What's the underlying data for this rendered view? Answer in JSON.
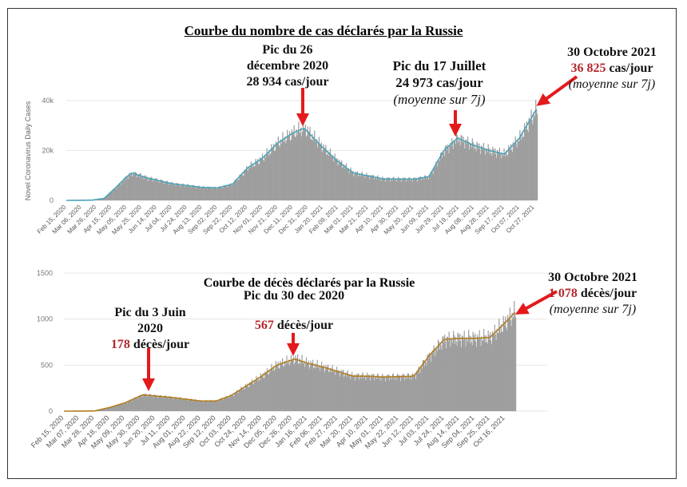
{
  "colors": {
    "bars": "#9e9e9e",
    "cases_line": "#4aa3b8",
    "deaths_line": "#b07d1f",
    "arrow": "#e31a1c",
    "highlight": "#b3282d",
    "grid": "#e6e6e6"
  },
  "chart_data": [
    {
      "type": "bar",
      "title": "Courbe du nombre de cas déclarés par la Russie",
      "ylabel": "Novel Coronavirus Daily Cases",
      "ylim": [
        0,
        40000
      ],
      "yticks": [
        {
          "v": 0,
          "label": "0"
        },
        {
          "v": 20000,
          "label": "20k"
        },
        {
          "v": 40000,
          "label": "40k"
        }
      ],
      "xrange": [
        "2020-02-15",
        "2021-10-30"
      ],
      "xticks": [
        "Feb 15, 2020",
        "Mar 06, 2020",
        "Mar 26, 2020",
        "Apr 15, 2020",
        "May 05, 2020",
        "May 25, 2020",
        "Jun 14, 2020",
        "Jul 04, 2020",
        "Jul 24, 2020",
        "Aug 13, 2020",
        "Sep 02, 2020",
        "Sep 22, 2020",
        "Oct 12, 2020",
        "Nov 01, 2020",
        "Nov 21, 2020",
        "Dec 11, 2020",
        "Dec 31, 2020",
        "Jan 20, 2021",
        "Feb 09, 2021",
        "Mar 01, 2021",
        "Mar 21, 2021",
        "Apr 10, 2021",
        "Apr 30, 2021",
        "May 20, 2021",
        "Jun 09, 2021",
        "Jun 29, 2021",
        "Jul 19, 2021",
        "Aug 08, 2021",
        "Aug 28, 2021",
        "Sep 17, 2021",
        "Oct 07, 2021",
        "Oct 27, 2021"
      ],
      "tick_step_days": 20,
      "series": [
        {
          "name": "7-day average",
          "points": [
            [
              "2020-02-15",
              0
            ],
            [
              "2020-03-20",
              100
            ],
            [
              "2020-04-05",
              800
            ],
            [
              "2020-04-20",
              5000
            ],
            [
              "2020-05-05",
              9500
            ],
            [
              "2020-05-12",
              11000
            ],
            [
              "2020-06-01",
              9000
            ],
            [
              "2020-07-04",
              6700
            ],
            [
              "2020-08-13",
              5200
            ],
            [
              "2020-09-02",
              5000
            ],
            [
              "2020-09-22",
              6500
            ],
            [
              "2020-10-12",
              13000
            ],
            [
              "2020-11-01",
              17000
            ],
            [
              "2020-11-21",
              23000
            ],
            [
              "2020-12-11",
              27000
            ],
            [
              "2020-12-26",
              28934
            ],
            [
              "2021-01-20",
              21000
            ],
            [
              "2021-02-09",
              15500
            ],
            [
              "2021-03-01",
              11000
            ],
            [
              "2021-04-10",
              8600
            ],
            [
              "2021-05-20",
              8500
            ],
            [
              "2021-06-09",
              9500
            ],
            [
              "2021-06-29",
              20000
            ],
            [
              "2021-07-17",
              24973
            ],
            [
              "2021-08-08",
              22000
            ],
            [
              "2021-08-28",
              20000
            ],
            [
              "2021-09-17",
              18500
            ],
            [
              "2021-10-07",
              25000
            ],
            [
              "2021-10-30",
              36825
            ]
          ]
        }
      ],
      "annotations": {
        "peak1": {
          "l1": "Pic du 26",
          "l2": "décembre 2020",
          "value": "28 934",
          "unit": "cas/jour"
        },
        "peak2": {
          "l1": "Pic du 17 Juillet",
          "value": "24 973",
          "unit": "cas/jour",
          "note": "(moyenne sur 7j)"
        },
        "last": {
          "l1": "30 Octobre 2021",
          "value": "36 825",
          "unit": "cas/jour",
          "note": "(moyenne sur 7j)"
        }
      }
    },
    {
      "type": "bar",
      "title": "Courbe de décès déclarés par la Russie",
      "ylim": [
        0,
        1500
      ],
      "yticks": [
        {
          "v": 0,
          "label": "0"
        },
        {
          "v": 500,
          "label": "500"
        },
        {
          "v": 1000,
          "label": "1000"
        },
        {
          "v": 1500,
          "label": "1500"
        }
      ],
      "xrange": [
        "2020-02-15",
        "2021-10-30"
      ],
      "xticks": [
        "Feb 15, 2020",
        "Mar 07, 2020",
        "Mar 28, 2020",
        "Apr 18, 2020",
        "May 09, 2020",
        "May 30, 2020",
        "Jun 20, 2020",
        "Jul 11, 2020",
        "Aug 01, 2020",
        "Aug 22, 2020",
        "Sep 12, 2020",
        "Oct 03, 2020",
        "Oct 24, 2020",
        "Nov 14, 2020",
        "Dec 05, 2020",
        "Dec 26, 2020",
        "Jan 16, 2021",
        "Feb 06, 2021",
        "Feb 27, 2021",
        "Mar 20, 2021",
        "Apr 10, 2021",
        "May 01, 2021",
        "May 22, 2021",
        "Jun 12, 2021",
        "Jul 03, 2021",
        "Jul 24, 2021",
        "Aug 14, 2021",
        "Sep 04, 2021",
        "Sep 25, 2021",
        "Oct 16, 2021"
      ],
      "tick_step_days": 21,
      "series": [
        {
          "name": "7-day average",
          "points": [
            [
              "2020-02-15",
              0
            ],
            [
              "2020-03-28",
              2
            ],
            [
              "2020-04-18",
              40
            ],
            [
              "2020-05-09",
              90
            ],
            [
              "2020-06-03",
              178
            ],
            [
              "2020-07-11",
              150
            ],
            [
              "2020-08-22",
              110
            ],
            [
              "2020-09-12",
              110
            ],
            [
              "2020-10-03",
              170
            ],
            [
              "2020-11-14",
              380
            ],
            [
              "2020-12-05",
              500
            ],
            [
              "2020-12-30",
              567
            ],
            [
              "2021-01-16",
              520
            ],
            [
              "2021-02-06",
              480
            ],
            [
              "2021-03-20",
              380
            ],
            [
              "2021-04-10",
              380
            ],
            [
              "2021-05-01",
              370
            ],
            [
              "2021-06-12",
              380
            ],
            [
              "2021-07-03",
              600
            ],
            [
              "2021-07-24",
              780
            ],
            [
              "2021-08-14",
              790
            ],
            [
              "2021-09-04",
              790
            ],
            [
              "2021-09-25",
              800
            ],
            [
              "2021-10-16",
              960
            ],
            [
              "2021-10-30",
              1078
            ]
          ]
        }
      ],
      "annotations": {
        "peak1": {
          "l1": "Pic du 3 Juin",
          "l2": "2020",
          "value": "178",
          "unit": "décès/jour"
        },
        "peak2": {
          "l1": "Pic du 30 dec 2020",
          "value": "567",
          "unit": "décès/jour"
        },
        "last": {
          "l1": "30 Octobre 2021",
          "value": "1 078",
          "unit": "décès/jour",
          "note": "(moyenne sur 7j)"
        }
      }
    }
  ]
}
